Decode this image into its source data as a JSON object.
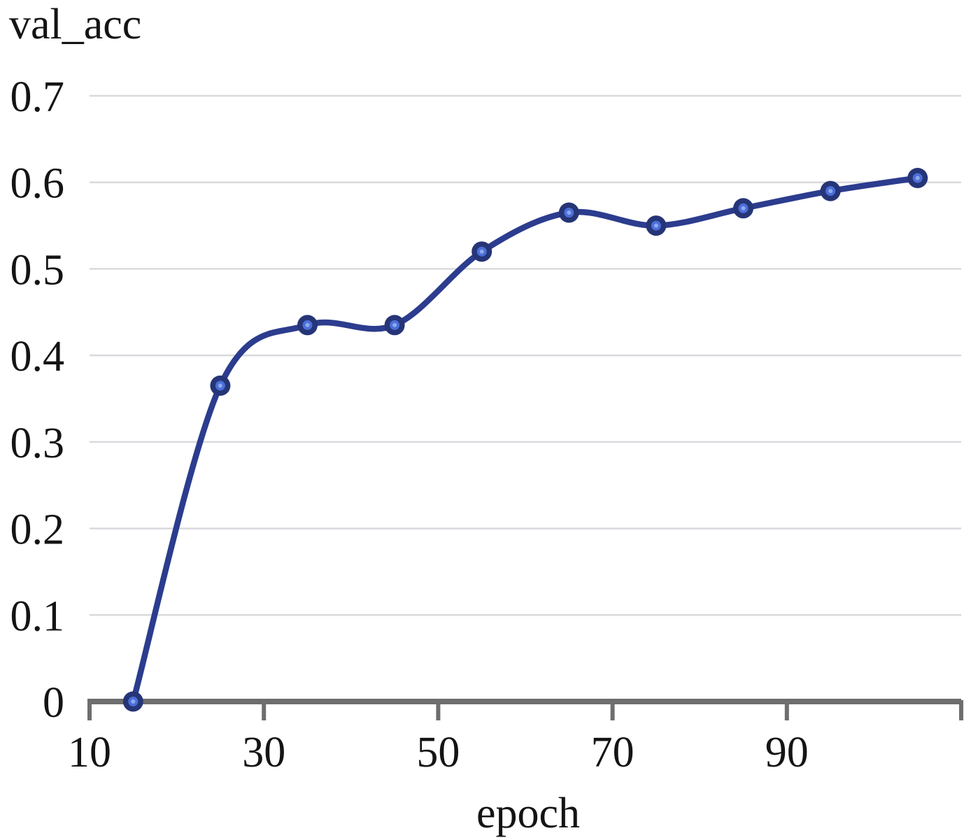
{
  "page": {
    "background": "#ffffff"
  },
  "chart_data": {
    "type": "line",
    "title": "val_acc",
    "xlabel": "epoch",
    "ylabel": "",
    "x": [
      15,
      25,
      35,
      45,
      55,
      65,
      75,
      85,
      95,
      105
    ],
    "series": [
      {
        "name": "val_acc",
        "values": [
          0,
          0.365,
          0.435,
          0.435,
          0.52,
          0.565,
          0.55,
          0.57,
          0.59,
          0.605
        ]
      }
    ],
    "xlim": [
      10,
      110
    ],
    "ylim": [
      0,
      0.7
    ],
    "x_ticks": [
      10,
      30,
      50,
      70,
      90
    ],
    "x_tick_labels": [
      "10",
      "30",
      "50",
      "70",
      "90"
    ],
    "y_ticks": [
      0,
      0.1,
      0.2,
      0.3,
      0.4,
      0.5,
      0.6,
      0.7
    ],
    "y_tick_labels": [
      "0",
      "0.1",
      "0.2",
      "0.3",
      "0.4",
      "0.5",
      "0.6",
      "0.7"
    ],
    "grid": "horizontal",
    "legend": "none",
    "smooth": true,
    "colors": {
      "line": "#2c3c8e",
      "marker_ring": "#263577",
      "marker_fill": "#4a6fd8",
      "marker_core": "#8fa9ee",
      "axis": "#6e6e6e",
      "gridline": "#d9d9de",
      "text": "#141414"
    }
  }
}
